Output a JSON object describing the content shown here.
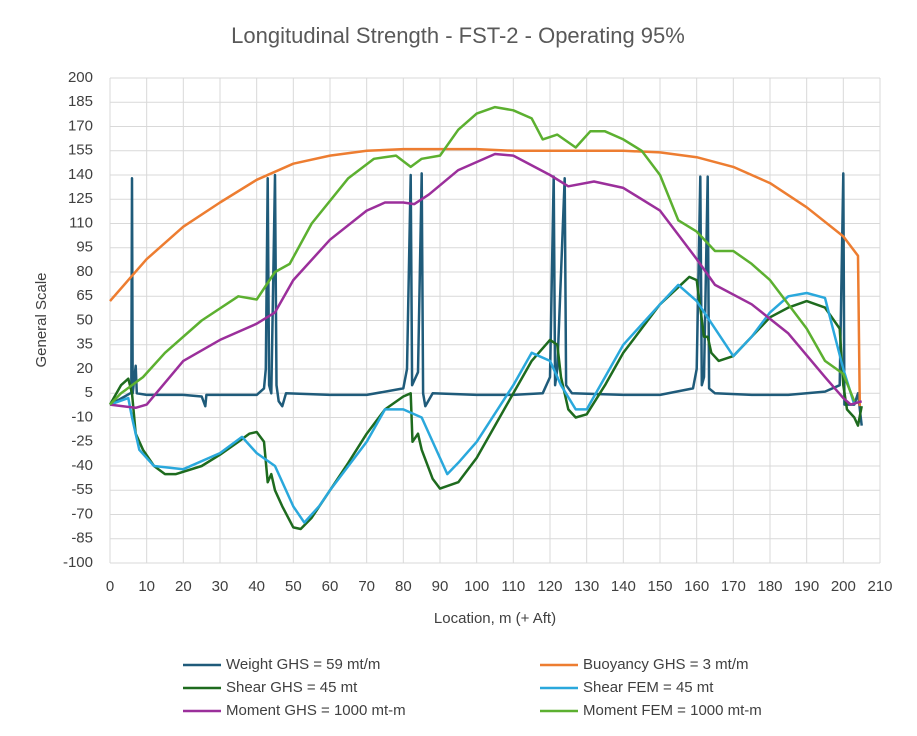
{
  "chart_data": {
    "type": "line",
    "title": "Longitudinal Strength - FST-2 - Operating 95%",
    "x_label": "Location, m (+ Aft)",
    "y_label": "General Scale",
    "xlim": [
      0,
      210
    ],
    "xticks": [
      0,
      10,
      20,
      30,
      40,
      50,
      60,
      70,
      80,
      90,
      100,
      110,
      120,
      130,
      140,
      150,
      160,
      170,
      180,
      190,
      200,
      210
    ],
    "ylim": [
      -100,
      200
    ],
    "yticks": [
      -100,
      -85,
      -70,
      -55,
      -40,
      -25,
      -10,
      5,
      20,
      35,
      50,
      65,
      80,
      95,
      110,
      125,
      140,
      155,
      170,
      185,
      200
    ],
    "grid": true,
    "legend": "bottom",
    "series": [
      {
        "name": "Weight GHS = 59 mt/m",
        "color": "#1f5b7a",
        "x": [
          0,
          4,
          5.5,
          5.8,
          6,
          6.2,
          7,
          7.3,
          10,
          20,
          25,
          26,
          26.3,
          40,
          42,
          42.5,
          43,
          43.4,
          44,
          45,
          45.4,
          46,
          47,
          48,
          60,
          70,
          80,
          81,
          82,
          82.4,
          84,
          85,
          85.4,
          86,
          88,
          100,
          110,
          118,
          120,
          121,
          121.4,
          122,
          124,
          124.4,
          126,
          140,
          150,
          159,
          160,
          161,
          161.4,
          162,
          163,
          163.4,
          165,
          175,
          185,
          195,
          199,
          200,
          200.3,
          203,
          204,
          205
        ],
        "values": [
          -2,
          3,
          5,
          5,
          138,
          5,
          22,
          5,
          4,
          4,
          3,
          -3,
          4,
          4,
          8,
          20,
          138,
          10,
          5,
          140,
          10,
          0,
          -3,
          5,
          4,
          4,
          8,
          20,
          140,
          10,
          18,
          141,
          5,
          -3,
          5,
          4,
          4,
          5,
          15,
          139,
          10,
          20,
          138,
          10,
          5,
          4,
          4,
          8,
          20,
          139,
          10,
          15,
          139,
          8,
          5,
          4,
          4,
          6,
          10,
          141,
          -2,
          -2,
          5,
          -15
        ]
      },
      {
        "name": "Buoyancy GHS = 3 mt/m",
        "color": "#ed7d31",
        "x": [
          0,
          5,
          10,
          20,
          30,
          40,
          50,
          60,
          70,
          80,
          90,
          100,
          110,
          120,
          140,
          150,
          160,
          170,
          180,
          190,
          200,
          204,
          204.5
        ],
        "values": [
          62,
          75,
          88,
          108,
          123,
          137,
          147,
          152,
          155,
          156,
          156,
          156,
          155,
          155,
          155,
          154,
          151,
          145,
          135,
          120,
          102,
          90,
          -3
        ]
      },
      {
        "name": "Shear GHS = 45 mt",
        "color": "#1e6b1e",
        "x": [
          0,
          3,
          5,
          6,
          7,
          9,
          12,
          15,
          18,
          25,
          30,
          35,
          38,
          40,
          42,
          43,
          44,
          45,
          47,
          50,
          52,
          55,
          60,
          65,
          70,
          75,
          80,
          82,
          82.5,
          84,
          85,
          88,
          90,
          95,
          100,
          105,
          110,
          115,
          120,
          122,
          123,
          125,
          127,
          130,
          135,
          140,
          150,
          158,
          160,
          162,
          163,
          164,
          166,
          170,
          175,
          180,
          185,
          190,
          195,
          199,
          200,
          201,
          203,
          204,
          205
        ],
        "values": [
          -2,
          10,
          14,
          5,
          -20,
          -30,
          -40,
          -45,
          -45,
          -40,
          -33,
          -25,
          -20,
          -19,
          -25,
          -50,
          -45,
          -55,
          -65,
          -78,
          -79,
          -72,
          -55,
          -38,
          -20,
          -5,
          3,
          5,
          -25,
          -20,
          -30,
          -48,
          -54,
          -50,
          -35,
          -15,
          5,
          25,
          38,
          35,
          15,
          -5,
          -10,
          -8,
          10,
          30,
          60,
          77,
          75,
          40,
          40,
          30,
          25,
          28,
          40,
          52,
          58,
          62,
          58,
          45,
          10,
          -5,
          -10,
          -15,
          -3
        ]
      },
      {
        "name": "Shear FEM = 45 mt",
        "color": "#2aa8dc",
        "x": [
          0,
          5,
          6,
          8,
          12,
          20,
          30,
          36,
          40,
          45,
          50,
          53,
          57,
          60,
          70,
          75,
          80,
          85,
          92,
          95,
          100,
          110,
          115,
          120,
          123,
          127,
          130,
          135,
          140,
          150,
          155,
          160,
          165,
          170,
          175,
          180,
          185,
          190,
          195,
          200,
          203
        ],
        "values": [
          -2,
          2,
          -10,
          -30,
          -40,
          -42,
          -32,
          -22,
          -32,
          -40,
          -65,
          -75,
          -65,
          -55,
          -25,
          -5,
          -5,
          -10,
          -45,
          -38,
          -25,
          10,
          30,
          25,
          10,
          -5,
          -5,
          15,
          35,
          60,
          72,
          62,
          45,
          28,
          40,
          55,
          65,
          67,
          64,
          20,
          -2
        ]
      },
      {
        "name": "Moment GHS = 1000 mt-m",
        "color": "#9b2f9b",
        "x": [
          0,
          7,
          10,
          20,
          30,
          40,
          45,
          50,
          60,
          70,
          75,
          80,
          83,
          87,
          95,
          105,
          110,
          120,
          125,
          132,
          140,
          150,
          160,
          165,
          175,
          185,
          195,
          200,
          202,
          205
        ],
        "values": [
          -2,
          -4,
          -2,
          25,
          38,
          48,
          55,
          75,
          100,
          118,
          123,
          123,
          122,
          128,
          143,
          153,
          152,
          140,
          133,
          136,
          132,
          118,
          88,
          72,
          60,
          42,
          15,
          2,
          -2,
          0
        ]
      },
      {
        "name": "Moment FEM = 1000 mt-m",
        "color": "#5cb030",
        "x": [
          0,
          3,
          6,
          9,
          15,
          25,
          35,
          40,
          45,
          49,
          55,
          65,
          72,
          78,
          82,
          85,
          90,
          95,
          100,
          105,
          110,
          115,
          118,
          122,
          127,
          131,
          135,
          140,
          145,
          150,
          155,
          160,
          165,
          170,
          175,
          180,
          185,
          190,
          195,
          200,
          203
        ],
        "values": [
          -2,
          5,
          10,
          15,
          30,
          50,
          65,
          63,
          80,
          85,
          110,
          138,
          150,
          152,
          145,
          150,
          152,
          168,
          178,
          182,
          180,
          175,
          162,
          165,
          157,
          167,
          167,
          162,
          155,
          140,
          112,
          105,
          93,
          93,
          85,
          75,
          60,
          45,
          25,
          17,
          0
        ]
      }
    ]
  }
}
